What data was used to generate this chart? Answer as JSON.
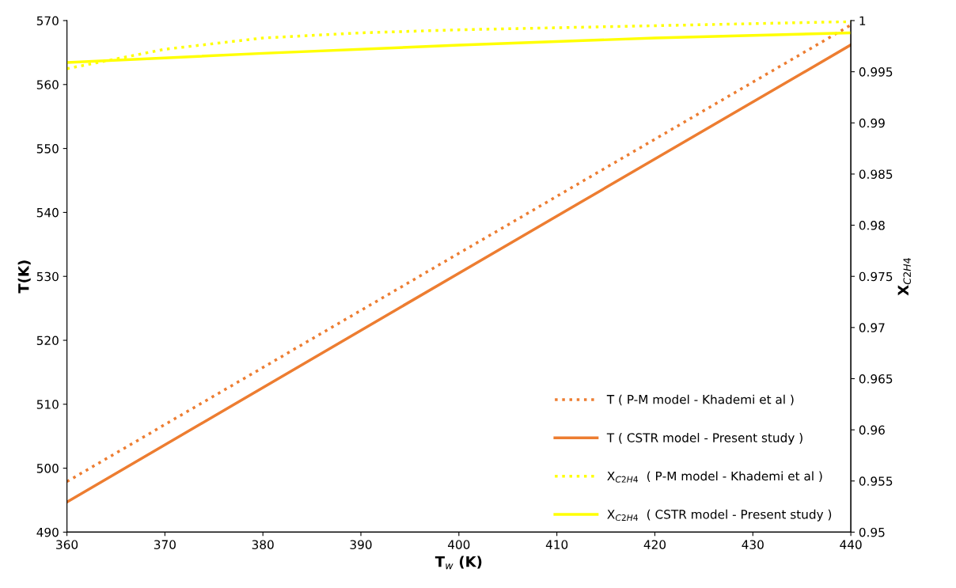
{
  "chart_data": {
    "type": "line",
    "xlabel": "T$_{w}$ (K)",
    "ylabel": "T(K)",
    "y2label": "X$_{C2H4}$",
    "xlim": [
      360,
      440
    ],
    "xticks": [
      360,
      370,
      380,
      390,
      400,
      410,
      420,
      430,
      440
    ],
    "ylim": [
      490,
      570
    ],
    "yticks": [
      490,
      500,
      510,
      520,
      530,
      540,
      550,
      560,
      570
    ],
    "y2lim": [
      0.95,
      1
    ],
    "y2ticks": [
      0.95,
      0.955,
      0.96,
      0.965,
      0.97,
      0.975,
      0.98,
      0.985,
      0.99,
      0.995,
      {
        "value": 1,
        "label": "1"
      }
    ],
    "grid": false,
    "legend": "bottom right",
    "marker": "none",
    "series": [
      {
        "name": "T ( P-M model - Khademi et al )",
        "color": "#ed7d31",
        "line_style": "dotted",
        "x": [
          360,
          400,
          440
        ],
        "values": [
          497.9,
          533.6,
          569.3
        ]
      },
      {
        "name": "T ( CSTR model - Present study )",
        "color": "#ed7d31",
        "line_style": "solid",
        "x": [
          360,
          400,
          440
        ],
        "values": [
          494.7,
          530.5,
          566.2
        ]
      },
      {
        "name": "X$_{C2H4}$  ( P-M model - Khademi et al )",
        "color": "#ffff00",
        "line_style": "dotted",
        "axis": "y2",
        "x": [
          360,
          370,
          380,
          390,
          400,
          420,
          440
        ],
        "values": [
          0.9953,
          0.9972,
          0.9983,
          0.9988,
          0.9991,
          0.9995,
          0.9999
        ]
      },
      {
        "name": "X$_{C2H4}$  ( CSTR model - Present study )",
        "color": "#ffff00",
        "line_style": "solid",
        "axis": "y2",
        "x": [
          360,
          380,
          400,
          420,
          440
        ],
        "values": [
          0.9959,
          0.9968,
          0.9976,
          0.9983,
          0.9988
        ]
      }
    ]
  }
}
